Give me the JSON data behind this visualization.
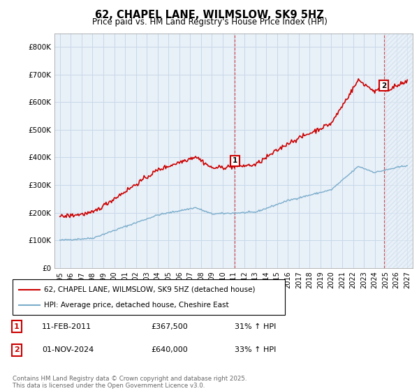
{
  "title": "62, CHAPEL LANE, WILMSLOW, SK9 5HZ",
  "subtitle": "Price paid vs. HM Land Registry's House Price Index (HPI)",
  "xlim_start": 1994.5,
  "xlim_end": 2027.5,
  "ylim": [
    0,
    850000
  ],
  "yticks": [
    0,
    100000,
    200000,
    300000,
    400000,
    500000,
    600000,
    700000,
    800000
  ],
  "ytick_labels": [
    "£0",
    "£100K",
    "£200K",
    "£300K",
    "£400K",
    "£500K",
    "£600K",
    "£700K",
    "£800K"
  ],
  "red_color": "#cc0000",
  "blue_color": "#7aadcb",
  "marker1_x": 2011.12,
  "marker1_y": 367500,
  "marker2_x": 2024.84,
  "marker2_y": 640000,
  "legend_entry1": "62, CHAPEL LANE, WILMSLOW, SK9 5HZ (detached house)",
  "legend_entry2": "HPI: Average price, detached house, Cheshire East",
  "annotation1_num": "1",
  "annotation1_date": "11-FEB-2011",
  "annotation1_price": "£367,500",
  "annotation1_hpi": "31% ↑ HPI",
  "annotation2_num": "2",
  "annotation2_date": "01-NOV-2024",
  "annotation2_price": "£640,000",
  "annotation2_hpi": "33% ↑ HPI",
  "footer": "Contains HM Land Registry data © Crown copyright and database right 2025.\nThis data is licensed under the Open Government Licence v3.0.",
  "background_color": "#ffffff",
  "grid_color": "#c8d8e8",
  "chart_bg": "#e8f0f8"
}
